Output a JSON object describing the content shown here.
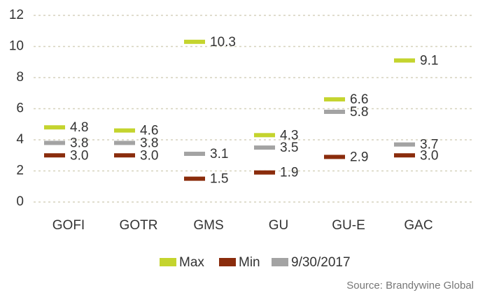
{
  "chart_data": {
    "type": "marker",
    "categories": [
      "GOFI",
      "GOTR",
      "GMS",
      "GU",
      "GU-E",
      "GAC"
    ],
    "series": [
      {
        "name": "Max",
        "color": "#c4d42e",
        "values": [
          4.8,
          4.6,
          10.3,
          4.3,
          6.6,
          9.1
        ],
        "value_labels": [
          "4.8",
          "4.6",
          "10.3",
          "4.3",
          "6.6",
          "9.1"
        ]
      },
      {
        "name": "Min",
        "color": "#8a2c0c",
        "values": [
          3.0,
          3.0,
          1.5,
          1.9,
          2.9,
          3.0
        ],
        "value_labels": [
          "3.0",
          "3.0",
          "1.5",
          "1.9",
          "2.9",
          "3.0"
        ]
      },
      {
        "name": "9/30/2017",
        "color": "#a3a3a3",
        "values": [
          3.8,
          3.8,
          3.1,
          3.5,
          5.8,
          3.7
        ],
        "value_labels": [
          "3.8",
          "3.8",
          "3.1",
          "3.5",
          "5.8",
          "3.7"
        ]
      }
    ],
    "ylim": [
      0,
      12
    ],
    "yticks": [
      0,
      2,
      4,
      6,
      8,
      10,
      12
    ],
    "grid": true,
    "source": "Source: Brandywine Global"
  }
}
